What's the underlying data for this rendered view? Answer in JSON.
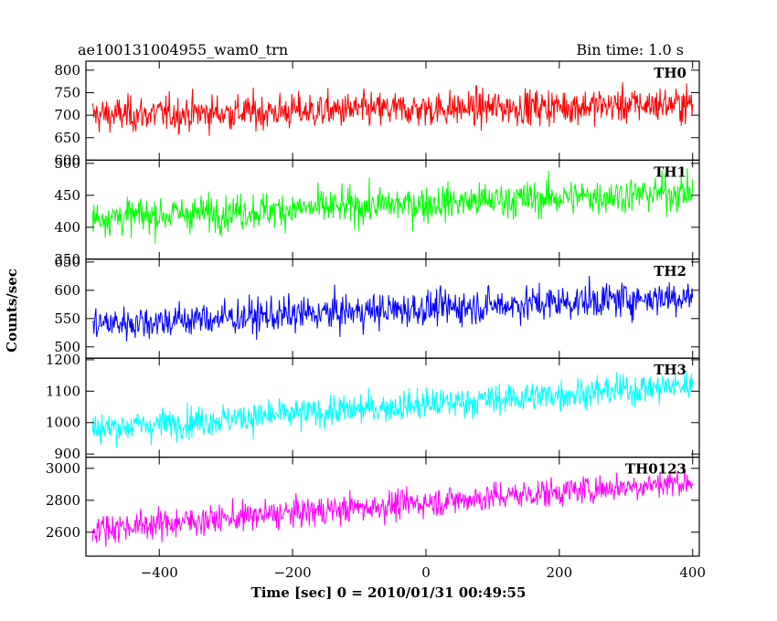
{
  "header": {
    "title": "ae100131004955_wam0_trn",
    "bin_time": "Bin time: 1.0 s"
  },
  "chart_data": {
    "type": "line",
    "xlabel": "Time [sec] 0 = 2010/01/31 00:49:55",
    "ylabel": "Counts/sec",
    "xlim": [
      -510,
      410
    ],
    "x_ticks": [
      -400,
      -200,
      0,
      200,
      400
    ],
    "x_tick_labels": [
      "−400",
      "−200",
      "0",
      "200",
      "400"
    ],
    "grid": false,
    "panels": [
      {
        "name": "TH0",
        "color": "#ff0000",
        "ylim": [
          600,
          820
        ],
        "y_ticks": [
          600,
          650,
          700,
          750,
          800
        ],
        "trend": [
          700,
          725
        ],
        "noise": 28
      },
      {
        "name": "TH1",
        "color": "#00ff00",
        "ylim": [
          350,
          505
        ],
        "y_ticks": [
          350,
          400,
          450,
          500
        ],
        "trend": [
          415,
          455
        ],
        "noise": 20
      },
      {
        "name": "TH2",
        "color": "#0000ff",
        "ylim": [
          480,
          655
        ],
        "y_ticks": [
          500,
          550,
          600,
          650
        ],
        "trend": [
          540,
          590
        ],
        "noise": 22
      },
      {
        "name": "TH3",
        "color": "#00ffff",
        "ylim": [
          890,
          1205
        ],
        "y_ticks": [
          900,
          1000,
          1100,
          1200
        ],
        "trend": [
          980,
          1120
        ],
        "noise": 35
      },
      {
        "name": "TH0123",
        "color": "#ff00ff",
        "ylim": [
          2450,
          3070
        ],
        "y_ticks": [
          2600,
          2800,
          3000
        ],
        "trend": [
          2620,
          2920
        ],
        "noise": 65
      }
    ]
  }
}
